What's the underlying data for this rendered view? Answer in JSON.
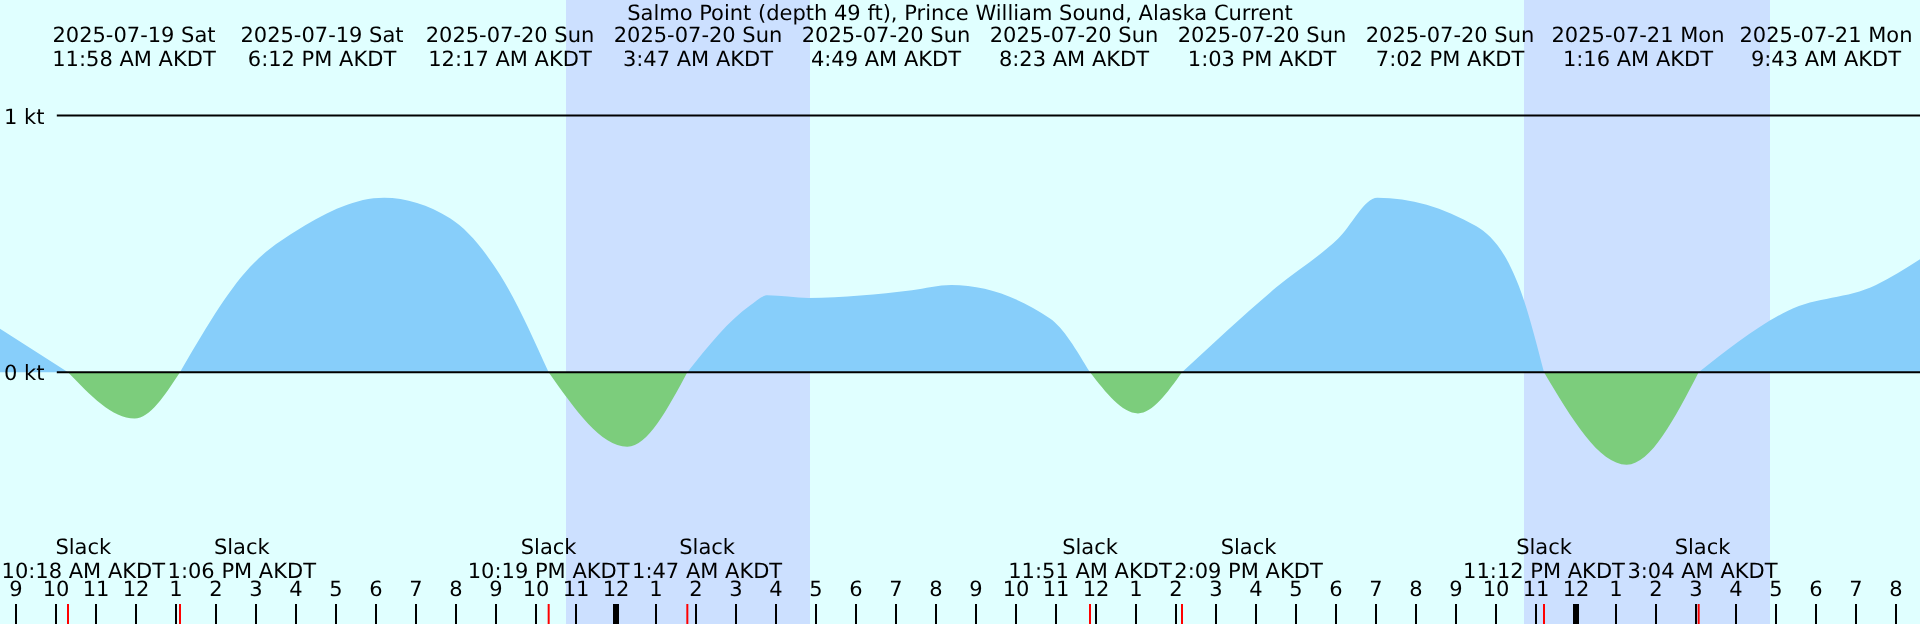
{
  "chart_data": {
    "type": "area",
    "title": "Salmo Point (depth 49 ft), Prince William Sound, Alaska Current",
    "xlim": [
      "2025-07-19T08:36",
      "2025-07-21T08:36"
    ],
    "ylim": [
      -0.98,
      1.45
    ],
    "xticks": [
      {
        "value": "2025-07-19T09:00",
        "label": "9"
      },
      {
        "value": "2025-07-19T10:00",
        "label": "10"
      },
      {
        "value": "2025-07-19T11:00",
        "label": "11"
      },
      {
        "value": "2025-07-19T12:00",
        "label": "12"
      },
      {
        "value": "2025-07-19T13:00",
        "label": "1"
      },
      {
        "value": "2025-07-19T14:00",
        "label": "2"
      },
      {
        "value": "2025-07-19T15:00",
        "label": "3"
      },
      {
        "value": "2025-07-19T16:00",
        "label": "4"
      },
      {
        "value": "2025-07-19T17:00",
        "label": "5"
      },
      {
        "value": "2025-07-19T18:00",
        "label": "6"
      },
      {
        "value": "2025-07-19T19:00",
        "label": "7"
      },
      {
        "value": "2025-07-19T20:00",
        "label": "8"
      },
      {
        "value": "2025-07-19T21:00",
        "label": "9"
      },
      {
        "value": "2025-07-19T22:00",
        "label": "10"
      },
      {
        "value": "2025-07-19T23:00",
        "label": "11"
      },
      {
        "value": "2025-07-20T00:00",
        "label": "12"
      },
      {
        "value": "2025-07-20T01:00",
        "label": "1"
      },
      {
        "value": "2025-07-20T02:00",
        "label": "2"
      },
      {
        "value": "2025-07-20T03:00",
        "label": "3"
      },
      {
        "value": "2025-07-20T04:00",
        "label": "4"
      },
      {
        "value": "2025-07-20T05:00",
        "label": "5"
      },
      {
        "value": "2025-07-20T06:00",
        "label": "6"
      },
      {
        "value": "2025-07-20T07:00",
        "label": "7"
      },
      {
        "value": "2025-07-20T08:00",
        "label": "8"
      },
      {
        "value": "2025-07-20T09:00",
        "label": "9"
      },
      {
        "value": "2025-07-20T10:00",
        "label": "10"
      },
      {
        "value": "2025-07-20T11:00",
        "label": "11"
      },
      {
        "value": "2025-07-20T12:00",
        "label": "12"
      },
      {
        "value": "2025-07-20T13:00",
        "label": "1"
      },
      {
        "value": "2025-07-20T14:00",
        "label": "2"
      },
      {
        "value": "2025-07-20T15:00",
        "label": "3"
      },
      {
        "value": "2025-07-20T16:00",
        "label": "4"
      },
      {
        "value": "2025-07-20T17:00",
        "label": "5"
      },
      {
        "value": "2025-07-20T18:00",
        "label": "6"
      },
      {
        "value": "2025-07-20T19:00",
        "label": "7"
      },
      {
        "value": "2025-07-20T20:00",
        "label": "8"
      },
      {
        "value": "2025-07-20T21:00",
        "label": "9"
      },
      {
        "value": "2025-07-20T22:00",
        "label": "10"
      },
      {
        "value": "2025-07-20T23:00",
        "label": "11"
      },
      {
        "value": "2025-07-21T00:00",
        "label": "12"
      },
      {
        "value": "2025-07-21T01:00",
        "label": "1"
      },
      {
        "value": "2025-07-21T02:00",
        "label": "2"
      },
      {
        "value": "2025-07-21T03:00",
        "label": "3"
      },
      {
        "value": "2025-07-21T04:00",
        "label": "4"
      },
      {
        "value": "2025-07-21T05:00",
        "label": "5"
      },
      {
        "value": "2025-07-21T06:00",
        "label": "6"
      },
      {
        "value": "2025-07-21T07:00",
        "label": "7"
      },
      {
        "value": "2025-07-21T08:00",
        "label": "8"
      }
    ],
    "yticks": [
      {
        "value": 0,
        "label": "0 kt"
      },
      {
        "value": 1,
        "label": "1 kt"
      }
    ],
    "grid": "y",
    "series": [
      {
        "color": "#87cefa",
        "x": [
          "2025-07-19T08:36",
          "2025-07-19T10:18",
          "2025-07-19T11:58",
          "2025-07-19T13:06",
          "2025-07-19T14:51",
          "2025-07-19T16:06",
          "2025-07-19T18:12",
          "2025-07-19T19:51",
          "2025-07-19T21:06",
          "2025-07-19T22:19",
          "2025-07-20T00:17",
          "2025-07-20T01:47",
          "2025-07-20T03:21",
          "2025-07-20T03:47",
          "2025-07-20T04:49",
          "2025-07-20T07:24",
          "2025-07-20T08:23",
          "2025-07-20T10:51",
          "2025-07-20T11:51",
          "2025-07-20T13:03",
          "2025-07-20T14:09",
          "2025-07-20T16:30",
          "2025-07-20T18:03",
          "2025-07-20T19:02",
          "2025-07-20T21:30",
          "2025-07-20T22:42",
          "2025-07-20T23:12",
          "2025-07-21T01:16",
          "2025-07-21T03:04",
          "2025-07-21T05:18",
          "2025-07-21T07:30",
          "2025-07-21T08:36"
        ],
        "values": [
          0.17,
          0,
          null,
          0,
          0.41,
          0.56,
          0.68,
          0.6,
          0.38,
          0,
          null,
          0,
          0.26,
          0.3,
          0.29,
          0.32,
          0.34,
          0.21,
          0,
          null,
          0,
          0.33,
          0.52,
          0.68,
          0.57,
          0.28,
          0,
          null,
          0,
          0.24,
          0.34,
          0.44
        ]
      },
      {
        "color": "#7ccd7c",
        "x": [
          "2025-07-19T10:18",
          "2025-07-19T11:58",
          "2025-07-19T13:06",
          "2025-07-19T18:12",
          "2025-07-19T22:19",
          "2025-07-20T00:17",
          "2025-07-20T01:47",
          "2025-07-20T08:23",
          "2025-07-20T11:51",
          "2025-07-20T13:03",
          "2025-07-20T14:09",
          "2025-07-20T19:02",
          "2025-07-20T23:12",
          "2025-07-21T01:16",
          "2025-07-21T03:04"
        ],
        "values": [
          0,
          -0.18,
          0,
          null,
          0,
          -0.29,
          0,
          null,
          0,
          -0.16,
          0,
          null,
          0,
          -0.36,
          0
        ]
      }
    ],
    "bands": [
      {
        "axis": "x",
        "from": "2025-07-19T22:45",
        "to": "2025-07-20T04:51",
        "color": "#cce0ff"
      },
      {
        "axis": "x",
        "from": "2025-07-20T22:42",
        "to": "2025-07-21T04:51",
        "color": "#cce0ff"
      }
    ],
    "annotations": [
      "2025-07-19 Sat\n11:58 AM AKDT",
      "2025-07-19 Sat\n6:12 PM AKDT",
      "2025-07-20 Sun\n12:17 AM AKDT",
      "2025-07-20 Sun\n3:47 AM AKDT",
      "2025-07-20 Sun\n4:49 AM AKDT",
      "2025-07-20 Sun\n8:23 AM AKDT",
      "2025-07-20 Sun\n1:03 PM AKDT",
      "2025-07-20 Sun\n7:02 PM AKDT",
      "2025-07-21 Mon\n1:16 AM AKDT",
      "2025-07-21 Mon\n9:43 AM AKDT",
      "Slack\n10:18 AM AKDT",
      "Slack\n1:06 PM AKDT",
      "Slack\n10:19 PM AKDT",
      "Slack\n1:47 AM AKDT",
      "Slack\n11:51 AM AKDT",
      "Slack\n2:09 PM AKDT",
      "Slack\n11:12 PM AKDT",
      "Slack\n3:04 AM AKDT"
    ]
  }
}
